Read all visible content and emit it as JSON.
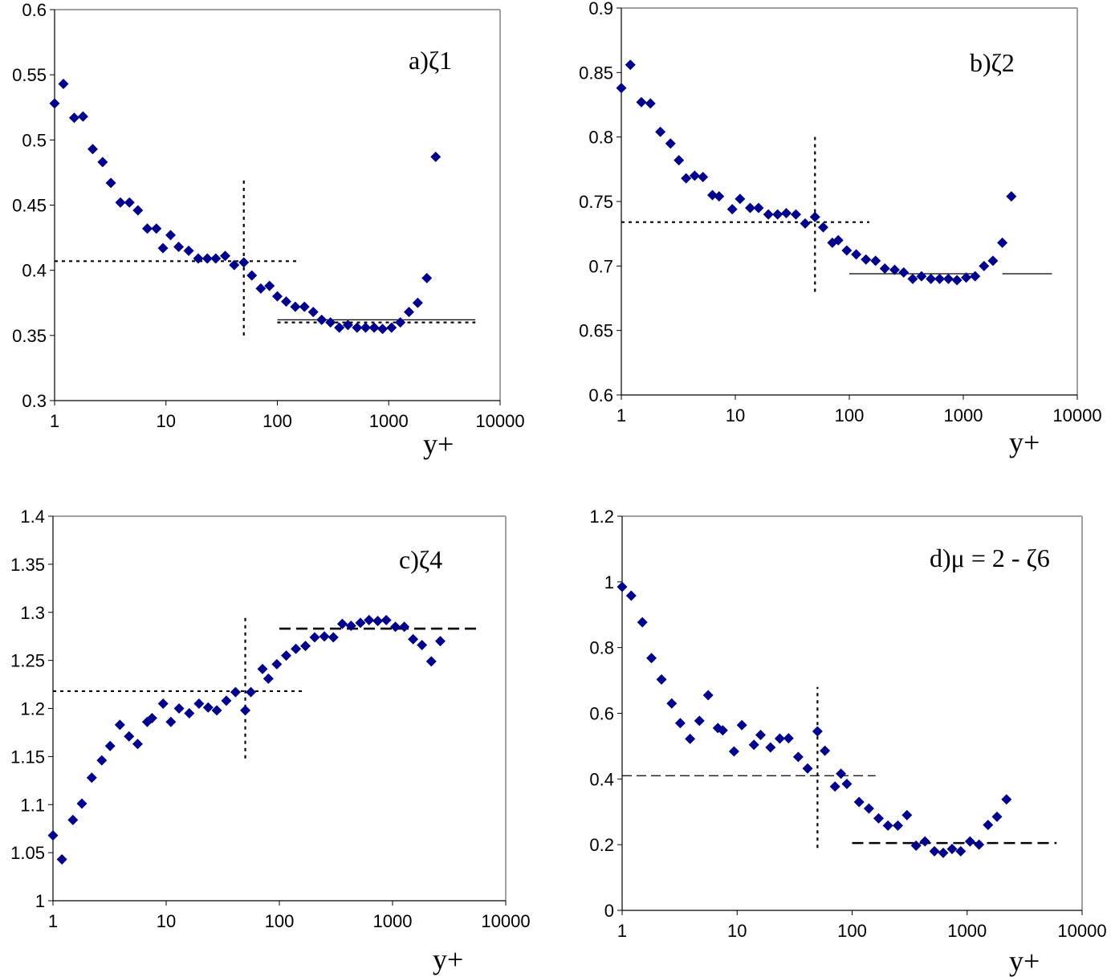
{
  "chart_data": [
    {
      "type": "scatter",
      "x_scale": "log",
      "title": "a)ζ1",
      "xlabel": "y+",
      "xlim": [
        1,
        10000
      ],
      "ylim": [
        0.3,
        0.6
      ],
      "x_ticks": [
        "1",
        "10",
        "100",
        "1000",
        "10000"
      ],
      "y_ticks": [
        "0.3",
        "0.35",
        "0.4",
        "0.45",
        "0.5",
        "0.55",
        "0.6"
      ],
      "series": [
        {
          "name": "ζ1",
          "color": "#00008b",
          "x": [
            1.0,
            1.2,
            1.5,
            1.8,
            2.2,
            2.7,
            3.2,
            3.9,
            4.7,
            5.6,
            6.8,
            8.2,
            9.4,
            11.0,
            13.0,
            16.0,
            19.5,
            23.5,
            28.0,
            34.0,
            41.0,
            50.0,
            59.0,
            71.0,
            85.0,
            100.0,
            120.0,
            145.0,
            175.0,
            210.0,
            250.0,
            300.0,
            360.0,
            430.0,
            520.0,
            620.0,
            740.0,
            880.0,
            1060.0,
            1270.0,
            1520.0,
            1820.0,
            2200.0,
            2640.0
          ],
          "y": [
            0.528,
            0.543,
            0.517,
            0.518,
            0.493,
            0.483,
            0.467,
            0.452,
            0.452,
            0.446,
            0.432,
            0.432,
            0.417,
            0.427,
            0.418,
            0.415,
            0.409,
            0.409,
            0.409,
            0.411,
            0.404,
            0.406,
            0.396,
            0.386,
            0.388,
            0.38,
            0.376,
            0.372,
            0.372,
            0.368,
            0.362,
            0.36,
            0.356,
            0.358,
            0.356,
            0.356,
            0.356,
            0.355,
            0.356,
            0.36,
            0.368,
            0.375,
            0.394,
            0.487
          ]
        }
      ],
      "reference_lines": [
        {
          "orientation": "horizontal",
          "y": 0.407,
          "x_range": [
            1,
            150
          ],
          "style": "dotted"
        },
        {
          "orientation": "vertical",
          "x": 50,
          "y_range": [
            0.35,
            0.47
          ],
          "style": "dotted"
        },
        {
          "orientation": "horizontal",
          "y": 0.36,
          "x_range": [
            100,
            6000
          ],
          "style": "dotted"
        },
        {
          "orientation": "horizontal",
          "y": 0.362,
          "x_range": [
            100,
            6000
          ],
          "style": "solid"
        }
      ]
    },
    {
      "type": "scatter",
      "x_scale": "log",
      "title": "b)ζ2",
      "xlabel": "y+",
      "xlim": [
        1,
        10000
      ],
      "ylim": [
        0.6,
        0.9
      ],
      "x_ticks": [
        "1",
        "10",
        "100",
        "1000",
        "10000"
      ],
      "y_ticks": [
        "0.6",
        "0.65",
        "0.7",
        "0.75",
        "0.8",
        "0.85",
        "0.9"
      ],
      "series": [
        {
          "name": "ζ2",
          "color": "#00008b",
          "x": [
            1.0,
            1.2,
            1.5,
            1.8,
            2.2,
            2.7,
            3.2,
            3.7,
            4.4,
            5.2,
            6.3,
            7.2,
            9.4,
            11.0,
            13.5,
            16.0,
            19.5,
            23.5,
            28.0,
            34.0,
            41.0,
            50.0,
            59.0,
            71.0,
            80.0,
            95.0,
            115.0,
            140.0,
            170.0,
            205.0,
            250.0,
            300.0,
            360.0,
            430.0,
            520.0,
            620.0,
            740.0,
            880.0,
            1060.0,
            1270.0,
            1520.0,
            1820.0,
            2200.0,
            2640.0
          ],
          "y": [
            0.838,
            0.856,
            0.827,
            0.826,
            0.804,
            0.795,
            0.782,
            0.768,
            0.77,
            0.769,
            0.755,
            0.754,
            0.744,
            0.752,
            0.745,
            0.745,
            0.74,
            0.74,
            0.741,
            0.74,
            0.733,
            0.738,
            0.73,
            0.718,
            0.72,
            0.712,
            0.709,
            0.705,
            0.704,
            0.698,
            0.697,
            0.695,
            0.69,
            0.692,
            0.69,
            0.69,
            0.69,
            0.689,
            0.691,
            0.692,
            0.7,
            0.704,
            0.718,
            0.754
          ]
        }
      ],
      "reference_lines": [
        {
          "orientation": "horizontal",
          "y": 0.734,
          "x_range": [
            1,
            150
          ],
          "style": "dotted"
        },
        {
          "orientation": "vertical",
          "x": 50,
          "y_range": [
            0.68,
            0.8
          ],
          "style": "dotted"
        },
        {
          "orientation": "horizontal",
          "y": 0.694,
          "x_range": [
            100,
            1300
          ],
          "style": "solid"
        },
        {
          "orientation": "horizontal",
          "y": 0.694,
          "x_range": [
            2200,
            6000
          ],
          "style": "solid"
        }
      ]
    },
    {
      "type": "scatter",
      "x_scale": "log",
      "title": "c)ζ4",
      "xlabel": "y+",
      "xlim": [
        1,
        10000
      ],
      "ylim": [
        1,
        1.4
      ],
      "x_ticks": [
        "1",
        "10",
        "100",
        "1000",
        "10000"
      ],
      "y_ticks": [
        "1",
        "1.05",
        "1.1",
        "1.15",
        "1.2",
        "1.25",
        "1.3",
        "1.35",
        "1.4"
      ],
      "series": [
        {
          "name": "ζ4",
          "color": "#00008b",
          "x": [
            1.0,
            1.2,
            1.5,
            1.8,
            2.2,
            2.7,
            3.2,
            3.9,
            4.7,
            5.6,
            6.8,
            7.5,
            9.4,
            11.0,
            13.0,
            16.0,
            19.5,
            23.5,
            28.0,
            34.0,
            41.0,
            50.0,
            56.0,
            71.0,
            80.0,
            95.0,
            115.0,
            140.0,
            170.0,
            205.0,
            250.0,
            300.0,
            360.0,
            430.0,
            520.0,
            620.0,
            740.0,
            880.0,
            1060.0,
            1270.0,
            1520.0,
            1820.0,
            2200.0,
            2640.0
          ],
          "y": [
            1.068,
            1.043,
            1.084,
            1.101,
            1.128,
            1.146,
            1.161,
            1.183,
            1.171,
            1.163,
            1.186,
            1.19,
            1.205,
            1.186,
            1.2,
            1.195,
            1.205,
            1.201,
            1.198,
            1.208,
            1.217,
            1.198,
            1.217,
            1.241,
            1.231,
            1.246,
            1.255,
            1.262,
            1.265,
            1.274,
            1.275,
            1.274,
            1.288,
            1.286,
            1.289,
            1.292,
            1.291,
            1.292,
            1.285,
            1.285,
            1.272,
            1.266,
            1.249,
            1.27
          ]
        }
      ],
      "reference_lines": [
        {
          "orientation": "horizontal",
          "y": 1.218,
          "x_range": [
            1,
            160
          ],
          "style": "dotted"
        },
        {
          "orientation": "vertical",
          "x": 50,
          "y_range": [
            1.148,
            1.297
          ],
          "style": "dotted"
        },
        {
          "orientation": "horizontal",
          "y": 1.283,
          "x_range": [
            100,
            6000
          ],
          "style": "dashed"
        }
      ]
    },
    {
      "type": "scatter",
      "x_scale": "log",
      "title": "d)μ = 2 - ζ6",
      "xlabel": "y+",
      "xlim": [
        1,
        10000
      ],
      "ylim": [
        0,
        1.2
      ],
      "x_ticks": [
        "1",
        "10",
        "100",
        "1000",
        "10000"
      ],
      "y_ticks": [
        "0",
        "0.2",
        "0.4",
        "0.6",
        "0.8",
        "1",
        "1.2"
      ],
      "series": [
        {
          "name": "μ",
          "color": "#00008b",
          "x": [
            1.0,
            1.2,
            1.5,
            1.8,
            2.2,
            2.7,
            3.2,
            3.9,
            4.7,
            5.6,
            6.8,
            7.5,
            9.4,
            11.0,
            14.0,
            16.0,
            19.5,
            23.5,
            28.0,
            34.0,
            41.0,
            50.0,
            58.0,
            71.0,
            80.0,
            90.0,
            115.0,
            140.0,
            170.0,
            205.0,
            250.0,
            300.0,
            360.0,
            430.0,
            520.0,
            620.0,
            740.0,
            880.0,
            1060.0,
            1270.0,
            1520.0,
            1820.0,
            2200.0
          ],
          "y": [
            0.985,
            0.958,
            0.877,
            0.768,
            0.703,
            0.63,
            0.57,
            0.522,
            0.577,
            0.655,
            0.555,
            0.548,
            0.484,
            0.564,
            0.504,
            0.534,
            0.496,
            0.523,
            0.524,
            0.467,
            0.432,
            0.545,
            0.486,
            0.377,
            0.416,
            0.385,
            0.33,
            0.31,
            0.28,
            0.258,
            0.258,
            0.29,
            0.197,
            0.21,
            0.18,
            0.175,
            0.187,
            0.18,
            0.21,
            0.2,
            0.26,
            0.285,
            0.338
          ]
        }
      ],
      "reference_lines": [
        {
          "orientation": "horizontal",
          "y": 0.41,
          "x_range": [
            1,
            160
          ],
          "style": "dashed-thin"
        },
        {
          "orientation": "vertical",
          "x": 50,
          "y_range": [
            0.19,
            0.68
          ],
          "style": "dotted"
        },
        {
          "orientation": "horizontal",
          "y": 0.205,
          "x_range": [
            100,
            6000
          ],
          "style": "dashed"
        }
      ]
    }
  ]
}
